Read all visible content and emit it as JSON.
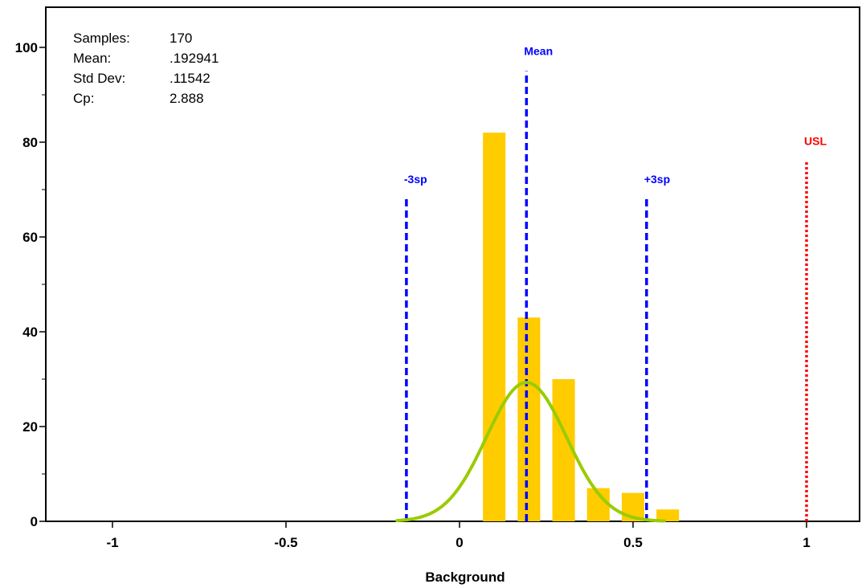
{
  "stats": {
    "samples_label": "Samples:",
    "samples_value": "170",
    "mean_label": "Mean:",
    "mean_value": ".192941",
    "stddev_label": "Std Dev:",
    "stddev_value": ".11542",
    "cp_label": "Cp:",
    "cp_value": "2.888"
  },
  "colors": {
    "bar": "#ffcc00",
    "curve": "#99cc00",
    "sigma_lines": "#0000ff",
    "usl_line": "#ff0000"
  },
  "chart_data": {
    "type": "bar",
    "xlabel": "Background",
    "ylabel": "",
    "xlim": [
      -1.2,
      1.2
    ],
    "ylim": [
      0,
      108
    ],
    "x_ticks": [
      {
        "value": -1,
        "label": "-1"
      },
      {
        "value": -0.5,
        "label": "-0.5"
      },
      {
        "value": 0,
        "label": "0"
      },
      {
        "value": 0.5,
        "label": "0.5"
      },
      {
        "value": 1,
        "label": "1"
      }
    ],
    "y_ticks": [
      {
        "value": 0,
        "label": "0"
      },
      {
        "value": 20,
        "label": "20"
      },
      {
        "value": 40,
        "label": "40"
      },
      {
        "value": 60,
        "label": "60"
      },
      {
        "value": 80,
        "label": "80"
      },
      {
        "value": 100,
        "label": "100"
      }
    ],
    "y_minor_ticks": [
      10,
      30,
      50,
      70,
      90
    ],
    "bar_width": 0.065,
    "bars": [
      {
        "x": 0.1,
        "value": 82
      },
      {
        "x": 0.2,
        "value": 43
      },
      {
        "x": 0.3,
        "value": 30
      },
      {
        "x": 0.4,
        "value": 7
      },
      {
        "x": 0.5,
        "value": 6
      },
      {
        "x": 0.6,
        "value": 2.5
      }
    ],
    "normal_curve": {
      "mean": 0.192941,
      "std": 0.11542,
      "peak": 29.3,
      "x_start": -0.18,
      "x_end": 0.59
    },
    "reference_lines": [
      {
        "label": "-3sp",
        "x": -0.153,
        "top": 68,
        "color": "#0000ff",
        "style": "dashed"
      },
      {
        "label": "Mean",
        "x": 0.192941,
        "top": 95,
        "color": "#0000ff",
        "style": "dashed"
      },
      {
        "label": "+3sp",
        "x": 0.539,
        "top": 68,
        "color": "#0000ff",
        "style": "dashed"
      },
      {
        "label": "USL",
        "x": 1.0,
        "top": 76,
        "color": "#ff0000",
        "style": "dotted"
      }
    ]
  }
}
